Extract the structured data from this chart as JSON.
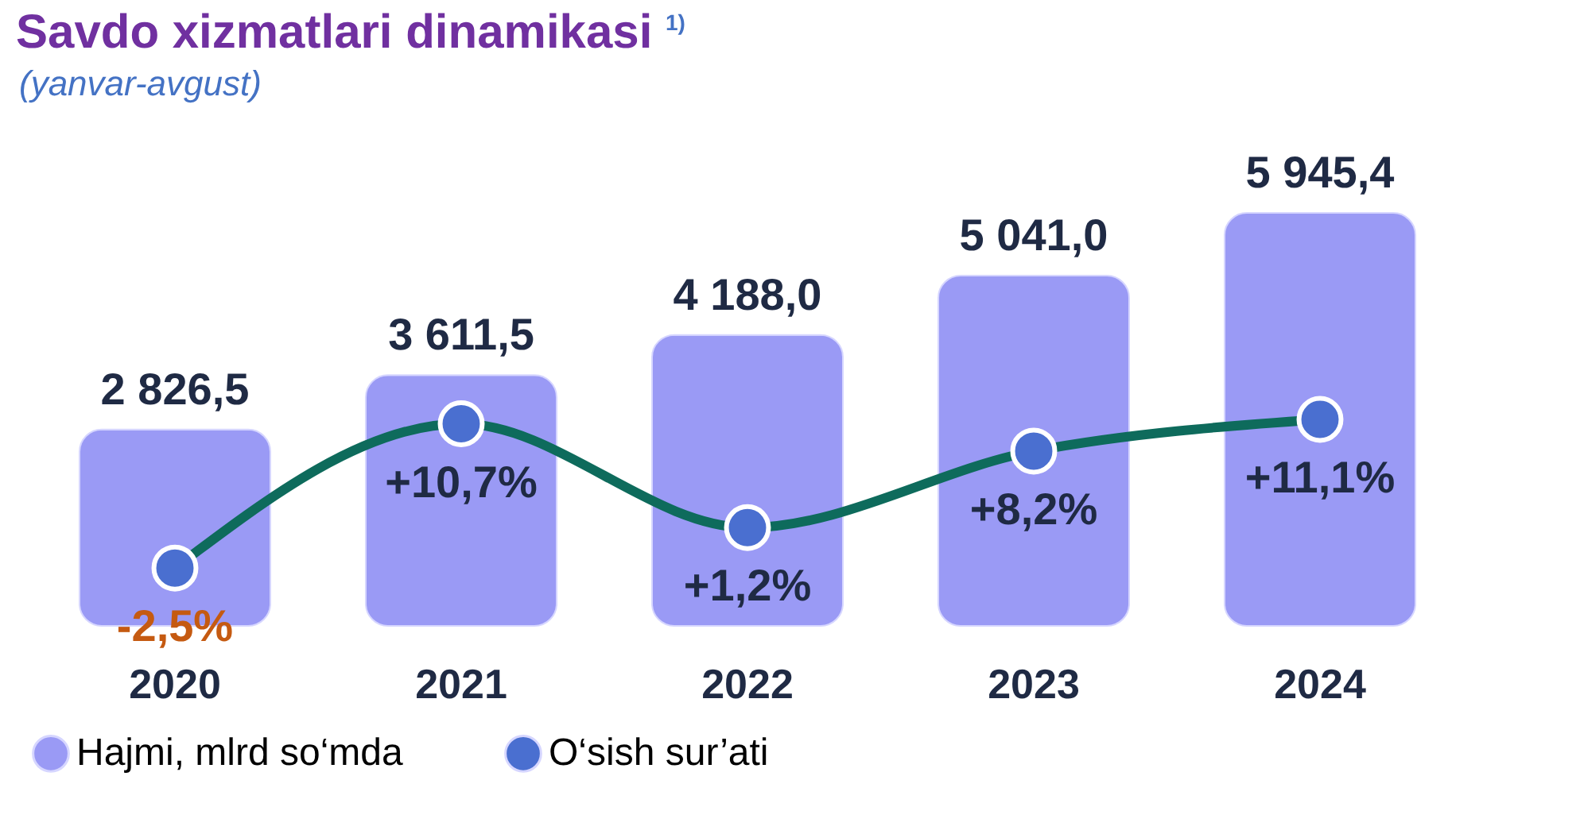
{
  "chart_data": {
    "type": "bar",
    "title": "Savdo xizmatlari dinamikasi $^{1)}$",
    "subtitle": "(yanvar-avgust)",
    "categories": [
      "2020",
      "2021",
      "2022",
      "2023",
      "2024"
    ],
    "series": [
      {
        "name": "Hajmi, mlrd so‘mda",
        "color": "#9a9af5",
        "values": [
          2826.5,
          3611.5,
          4188.0,
          5041.0,
          5945.4
        ],
        "value_labels": [
          "2 826,5",
          "3 611,5",
          "4 188,0",
          "5 041,0",
          "5 945,4"
        ]
      },
      {
        "name": "O‘sish sur’ati",
        "type": "line",
        "axis": "y2",
        "color": "#4a6fd0",
        "values": [
          -2.5,
          10.7,
          1.2,
          8.2,
          11.1
        ],
        "value_labels": [
          "-2,5%",
          "+10,7%",
          "+1,2%",
          "+8,2%",
          "+11,1%"
        ]
      }
    ],
    "legend": "bottom",
    "marker": "circle",
    "line_style": "solid"
  }
}
